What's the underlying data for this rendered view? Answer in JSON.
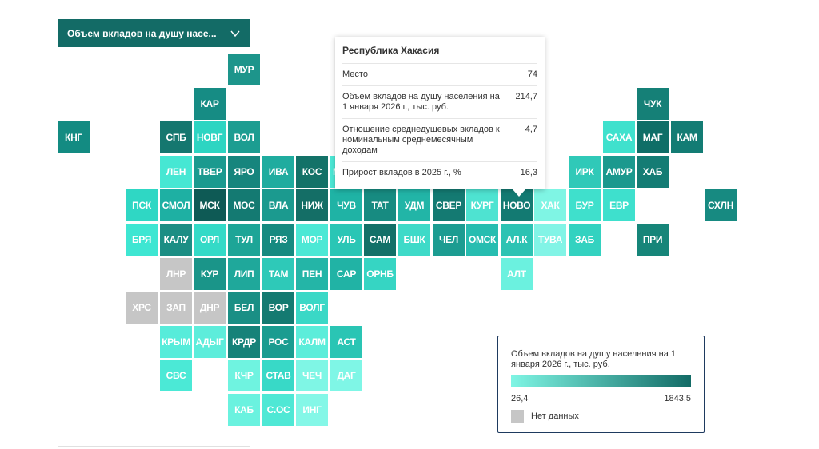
{
  "dropdown": {
    "label": "Объем вкладов на душу насе...",
    "icon": "chevron-down-icon"
  },
  "colors": {
    "low": "#7ff5e4",
    "high": "#136b66",
    "no_data": "#c6c6c6"
  },
  "tiles": [
    {
      "label": "МУР",
      "col": 6,
      "row": 0,
      "color": "#1d958b"
    },
    {
      "label": "КАР",
      "col": 5,
      "row": 1,
      "color": "#168c84"
    },
    {
      "label": "ЧУК",
      "col": 18,
      "row": 1,
      "color": "#158077"
    },
    {
      "label": "КНГ",
      "col": 1,
      "row": 2,
      "color": "#138b82"
    },
    {
      "label": "СПБ",
      "col": 4,
      "row": 2,
      "color": "#15776f"
    },
    {
      "label": "НОВГ",
      "col": 5,
      "row": 2,
      "color": "#2dd5c2"
    },
    {
      "label": "ВОЛ",
      "col": 6,
      "row": 2,
      "color": "#1c9d91"
    },
    {
      "label": "",
      "col": 10,
      "row": 2,
      "color": "#189b8f"
    },
    {
      "label": "",
      "col": 17,
      "row": 2,
      "color": "#3fe1cd"
    },
    {
      "label": "САХА",
      "col": 17,
      "row": 2,
      "color": "#3fe1cd"
    },
    {
      "label": "МАГ",
      "col": 18,
      "row": 2,
      "color": "#0f6e67"
    },
    {
      "label": "КАМ",
      "col": 19,
      "row": 2,
      "color": "#137c74"
    },
    {
      "label": "ЛЕН",
      "col": 4,
      "row": 3,
      "color": "#46e7d3"
    },
    {
      "label": "ТВЕР",
      "col": 5,
      "row": 3,
      "color": "#1a9a8f"
    },
    {
      "label": "ЯРО",
      "col": 6,
      "row": 3,
      "color": "#16857d"
    },
    {
      "label": "ИВА",
      "col": 7,
      "row": 3,
      "color": "#1fac9f"
    },
    {
      "label": "КОС",
      "col": 8,
      "row": 3,
      "color": "#137268"
    },
    {
      "label": "МАРИ",
      "col": 9,
      "row": 3,
      "color": "#4ce8d6"
    },
    {
      "label": "ИРК",
      "col": 16,
      "row": 3,
      "color": "#30c9b8"
    },
    {
      "label": "АМУР",
      "col": 17,
      "row": 3,
      "color": "#1b998e"
    },
    {
      "label": "ХАБ",
      "col": 18,
      "row": 3,
      "color": "#147c74"
    },
    {
      "label": "ПСК",
      "col": 3,
      "row": 4,
      "color": "#2fd7c4"
    },
    {
      "label": "СМОЛ",
      "col": 4,
      "row": 4,
      "color": "#1eb0a3"
    },
    {
      "label": "МСК",
      "col": 5,
      "row": 4,
      "color": "#0e5a55"
    },
    {
      "label": "МОС",
      "col": 6,
      "row": 4,
      "color": "#147a72"
    },
    {
      "label": "ВЛА",
      "col": 7,
      "row": 4,
      "color": "#1b9a8f"
    },
    {
      "label": "НИЖ",
      "col": 8,
      "row": 4,
      "color": "#146e66"
    },
    {
      "label": "ЧУВ",
      "col": 9,
      "row": 4,
      "color": "#1fb3a5"
    },
    {
      "label": "ТАТ",
      "col": 10,
      "row": 4,
      "color": "#178b81"
    },
    {
      "label": "УДМ",
      "col": 11,
      "row": 4,
      "color": "#22b5a7"
    },
    {
      "label": "СВЕР",
      "col": 12,
      "row": 4,
      "color": "#147a72"
    },
    {
      "label": "КУРГ",
      "col": 13,
      "row": 4,
      "color": "#4ee3d1"
    },
    {
      "label": "НОВО",
      "col": 14,
      "row": 4,
      "color": "#137a72"
    },
    {
      "label": "ХАК",
      "col": 15,
      "row": 4,
      "color": "#7ff5e4"
    },
    {
      "label": "БУР",
      "col": 16,
      "row": 4,
      "color": "#3fe0cc"
    },
    {
      "label": "ЕВР",
      "col": 17,
      "row": 4,
      "color": "#3ee0cd"
    },
    {
      "label": "СХЛН",
      "col": 20,
      "row": 4,
      "color": "#178a81"
    },
    {
      "label": "БРЯ",
      "col": 3,
      "row": 5,
      "color": "#3ee6d2"
    },
    {
      "label": "КАЛУ",
      "col": 4,
      "row": 5,
      "color": "#1b8e84"
    },
    {
      "label": "ОРЛ",
      "col": 5,
      "row": 5,
      "color": "#34dac7"
    },
    {
      "label": "ТУЛ",
      "col": 6,
      "row": 5,
      "color": "#1da597"
    },
    {
      "label": "РЯЗ",
      "col": 7,
      "row": 5,
      "color": "#168a80"
    },
    {
      "label": "МОР",
      "col": 8,
      "row": 5,
      "color": "#4ce8d5"
    },
    {
      "label": "УЛЬ",
      "col": 9,
      "row": 5,
      "color": "#2ac6b5"
    },
    {
      "label": "САМ",
      "col": 10,
      "row": 5,
      "color": "#137068"
    },
    {
      "label": "БШК",
      "col": 11,
      "row": 5,
      "color": "#3edac8"
    },
    {
      "label": "ЧЕЛ",
      "col": 12,
      "row": 5,
      "color": "#1c9c91"
    },
    {
      "label": "ОМСК",
      "col": 13,
      "row": 5,
      "color": "#27bdb0"
    },
    {
      "label": "АЛ.К",
      "col": 14,
      "row": 5,
      "color": "#2cc3b3"
    },
    {
      "label": "ТУВА",
      "col": 15,
      "row": 5,
      "color": "#82f4e6"
    },
    {
      "label": "ЗАБ",
      "col": 16,
      "row": 5,
      "color": "#33d2c0"
    },
    {
      "label": "ПРИ",
      "col": 18,
      "row": 5,
      "color": "#168579"
    },
    {
      "label": "ЛНР",
      "col": 4,
      "row": 6,
      "color": "#c6c6c6"
    },
    {
      "label": "КУР",
      "col": 5,
      "row": 6,
      "color": "#1a9589"
    },
    {
      "label": "ЛИП",
      "col": 6,
      "row": 6,
      "color": "#1fa89b"
    },
    {
      "label": "ТАМ",
      "col": 7,
      "row": 6,
      "color": "#2ec9b8"
    },
    {
      "label": "ПЕН",
      "col": 8,
      "row": 6,
      "color": "#24b5a7"
    },
    {
      "label": "САР",
      "col": 9,
      "row": 6,
      "color": "#21b3a5"
    },
    {
      "label": "ОРНБ",
      "col": 10,
      "row": 6,
      "color": "#36d5c3"
    },
    {
      "label": "АЛТ",
      "col": 14,
      "row": 6,
      "color": "#6bf1df"
    },
    {
      "label": "ХРС",
      "col": 3,
      "row": 7,
      "color": "#c6c6c6"
    },
    {
      "label": "ЗАП",
      "col": 4,
      "row": 7,
      "color": "#c6c6c6"
    },
    {
      "label": "ДНР",
      "col": 5,
      "row": 7,
      "color": "#c6c6c6"
    },
    {
      "label": "БЕЛ",
      "col": 6,
      "row": 7,
      "color": "#1a8f85"
    },
    {
      "label": "ВОР",
      "col": 7,
      "row": 7,
      "color": "#147a71"
    },
    {
      "label": "ВОЛГ",
      "col": 8,
      "row": 7,
      "color": "#3ad8c6"
    },
    {
      "label": "КРЫМ",
      "col": 4,
      "row": 8,
      "color": "#57ecda"
    },
    {
      "label": "АДЫГ",
      "col": 5,
      "row": 8,
      "color": "#5deddb"
    },
    {
      "label": "КРДР",
      "col": 6,
      "row": 8,
      "color": "#168279"
    },
    {
      "label": "РОС",
      "col": 7,
      "row": 8,
      "color": "#1a9c90"
    },
    {
      "label": "КАЛМ",
      "col": 8,
      "row": 8,
      "color": "#5cedda"
    },
    {
      "label": "АСТ",
      "col": 9,
      "row": 8,
      "color": "#2ac5b4"
    },
    {
      "label": "СВС",
      "col": 4,
      "row": 9,
      "color": "#4be9d6"
    },
    {
      "label": "КЧР",
      "col": 6,
      "row": 9,
      "color": "#6ff3e0"
    },
    {
      "label": "СТАВ",
      "col": 7,
      "row": 9,
      "color": "#38d9c7"
    },
    {
      "label": "ЧЕЧ",
      "col": 8,
      "row": 9,
      "color": "#7ff6e5"
    },
    {
      "label": "ДАГ",
      "col": 9,
      "row": 9,
      "color": "#7ff6e6"
    },
    {
      "label": "КАБ",
      "col": 6,
      "row": 10,
      "color": "#6af2df"
    },
    {
      "label": "С.ОС",
      "col": 7,
      "row": 10,
      "color": "#4fe8d5"
    },
    {
      "label": "ИНГ",
      "col": 8,
      "row": 10,
      "color": "#84f7e7"
    }
  ],
  "tooltip": {
    "title": "Республика Хакасия",
    "rows": [
      {
        "label": "Место",
        "value": "74"
      },
      {
        "label": "Объем вкладов на душу населения на 1 января 2026 г., тыс. руб.",
        "value": "214,7"
      },
      {
        "label": "Отношение среднедушевых вкладов к номинальным среднемесячным доходам",
        "value": "4,7"
      },
      {
        "label": "Прирост вкладов в 2025 г., %",
        "value": "16,3"
      }
    ]
  },
  "legend": {
    "title": "Объем вкладов на душу населения на 1 января 2026 г., тыс. руб.",
    "min": "26,4",
    "max": "1843,5",
    "no_data": "Нет данных"
  }
}
